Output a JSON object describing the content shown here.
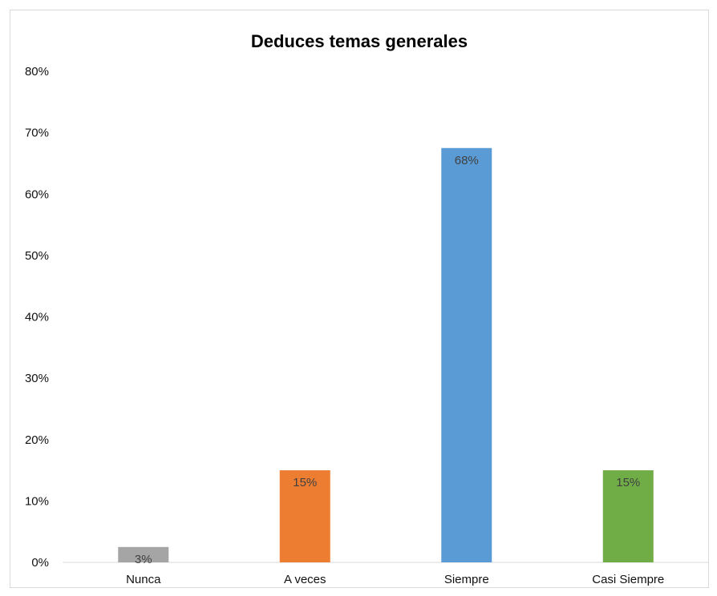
{
  "chart_data": {
    "type": "bar",
    "title": "Deduces temas generales",
    "xlabel": "",
    "ylabel": "",
    "categories": [
      "Nunca",
      "A veces",
      "Siempre",
      "Casi Siempre"
    ],
    "values": [
      0.025,
      0.15,
      0.675,
      0.15
    ],
    "data_labels": [
      "3%",
      "15%",
      "68%",
      "15%"
    ],
    "colors": [
      "#A5A5A5",
      "#ED7D31",
      "#5B9BD5",
      "#70AD47"
    ],
    "ylim": [
      0,
      0.8
    ],
    "yticks": [
      0,
      0.1,
      0.2,
      0.3,
      0.4,
      0.5,
      0.6,
      0.7,
      0.8
    ],
    "ytick_labels": [
      "0%",
      "10%",
      "20%",
      "30%",
      "40%",
      "50%",
      "60%",
      "70%",
      "80%"
    ],
    "grid": false,
    "legend": "none"
  }
}
